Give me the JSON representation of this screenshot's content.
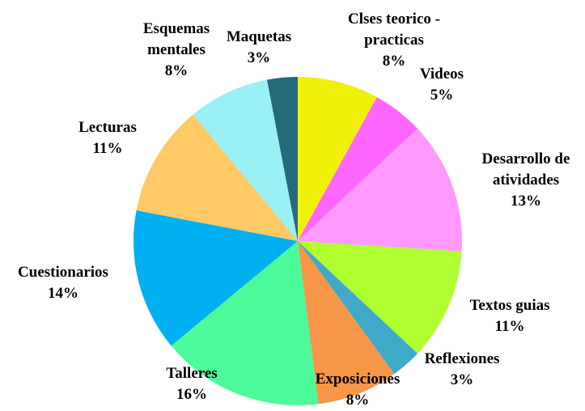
{
  "chart_data": {
    "type": "pie",
    "categories": [
      "Clses teorico - practicas",
      "Videos",
      "Desarrollo de atividades",
      "Textos guias",
      "Reflexiones",
      "Exposiciones",
      "Talleres",
      "Cuestionarios",
      "Lecturas",
      "Esquemas mentales",
      "Maquetas"
    ],
    "values": [
      8,
      5,
      13,
      11,
      3,
      8,
      16,
      14,
      11,
      8,
      3
    ],
    "value_labels": [
      "8%",
      "5%",
      "13%",
      "11%",
      "3%",
      "8%",
      "16%",
      "14%",
      "11%",
      "8%",
      "3%"
    ],
    "colors": [
      "#f0f00a",
      "#ff66ff",
      "#ff99ff",
      "#b0ff30",
      "#3fa9c9",
      "#f79646",
      "#4dfa9a",
      "#00b0f0",
      "#ffc966",
      "#99f0f5",
      "#256a7a"
    ]
  }
}
